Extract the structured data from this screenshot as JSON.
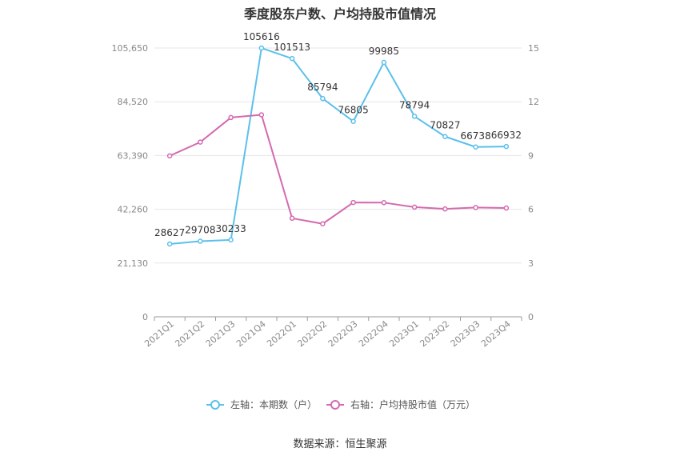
{
  "chart_data": {
    "type": "line",
    "title": "季度股东户数、户均持股市值情况",
    "categories": [
      "2021Q1",
      "2021Q2",
      "2021Q3",
      "2021Q4",
      "2022Q1",
      "2022Q2",
      "2022Q3",
      "2022Q4",
      "2023Q1",
      "2023Q2",
      "2023Q3",
      "2023Q4"
    ],
    "left_axis": {
      "ylim": [
        0,
        105650
      ],
      "ticks": [
        "0",
        "21,130",
        "42,260",
        "63,390",
        "84,520",
        "105,650"
      ]
    },
    "right_axis": {
      "ylim": [
        0,
        15
      ],
      "ticks": [
        "0",
        "3",
        "6",
        "9",
        "12",
        "15"
      ]
    },
    "series": [
      {
        "name": "左轴：本期数（户）",
        "axis": "left",
        "color": "#5bc0eb",
        "values": [
          28627,
          29708,
          30233,
          105616,
          101513,
          85794,
          76805,
          99985,
          78794,
          70827,
          66738,
          66932
        ],
        "labels": [
          "28627",
          "29708",
          "30233",
          "105616",
          "101513",
          "85794",
          "76805",
          "99985",
          "78794",
          "70827",
          "66738",
          "66932"
        ]
      },
      {
        "name": "右轴：户均持股市值（万元）",
        "axis": "right",
        "color": "#d46ab0",
        "values": [
          8.98,
          9.75,
          11.12,
          11.27,
          5.5,
          5.19,
          6.38,
          6.37,
          6.12,
          6.02,
          6.1,
          6.07
        ]
      }
    ],
    "grid": true,
    "legend_position": "bottom"
  },
  "footer": {
    "source": "数据来源：恒生聚源"
  }
}
